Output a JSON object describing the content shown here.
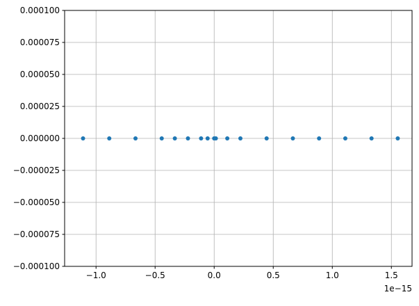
{
  "chart_data": {
    "type": "scatter",
    "title": "",
    "xlabel": "",
    "ylabel": "",
    "x_offset_label": "1e−15",
    "x_scale_factor": 1e-15,
    "xlim": [
      -1.266,
      1.675
    ],
    "ylim": [
      -0.0001,
      0.0001
    ],
    "grid": true,
    "marker_color": "#1f77b4",
    "grid_color": "#b0b0b0",
    "x_ticks": [
      -1.0,
      -0.5,
      0.0,
      0.5,
      1.0,
      1.5
    ],
    "x_tick_labels": [
      "−1.0",
      "−0.5",
      "0.0",
      "0.5",
      "1.0",
      "1.5"
    ],
    "y_ticks": [
      0.0001,
      7.5e-05,
      5e-05,
      2.5e-05,
      0,
      -2.5e-05,
      -5e-05,
      -7.5e-05,
      -0.0001
    ],
    "y_tick_labels": [
      "0.000100",
      "0.000075",
      "0.000050",
      "0.000025",
      "0.000000",
      "−0.000025",
      "−0.000050",
      "−0.000075",
      "−0.000100"
    ],
    "x": [
      -1.11,
      -0.888,
      -0.666,
      -0.444,
      -0.333,
      -0.222,
      -0.111,
      -0.0555,
      0.0,
      0.0139,
      0.111,
      0.222,
      0.444,
      0.666,
      0.888,
      1.11,
      1.332,
      1.554
    ],
    "y": [
      0,
      0,
      0,
      0,
      0,
      0,
      0,
      0,
      0,
      0,
      0,
      0,
      0,
      0,
      0,
      0,
      0,
      0
    ]
  }
}
